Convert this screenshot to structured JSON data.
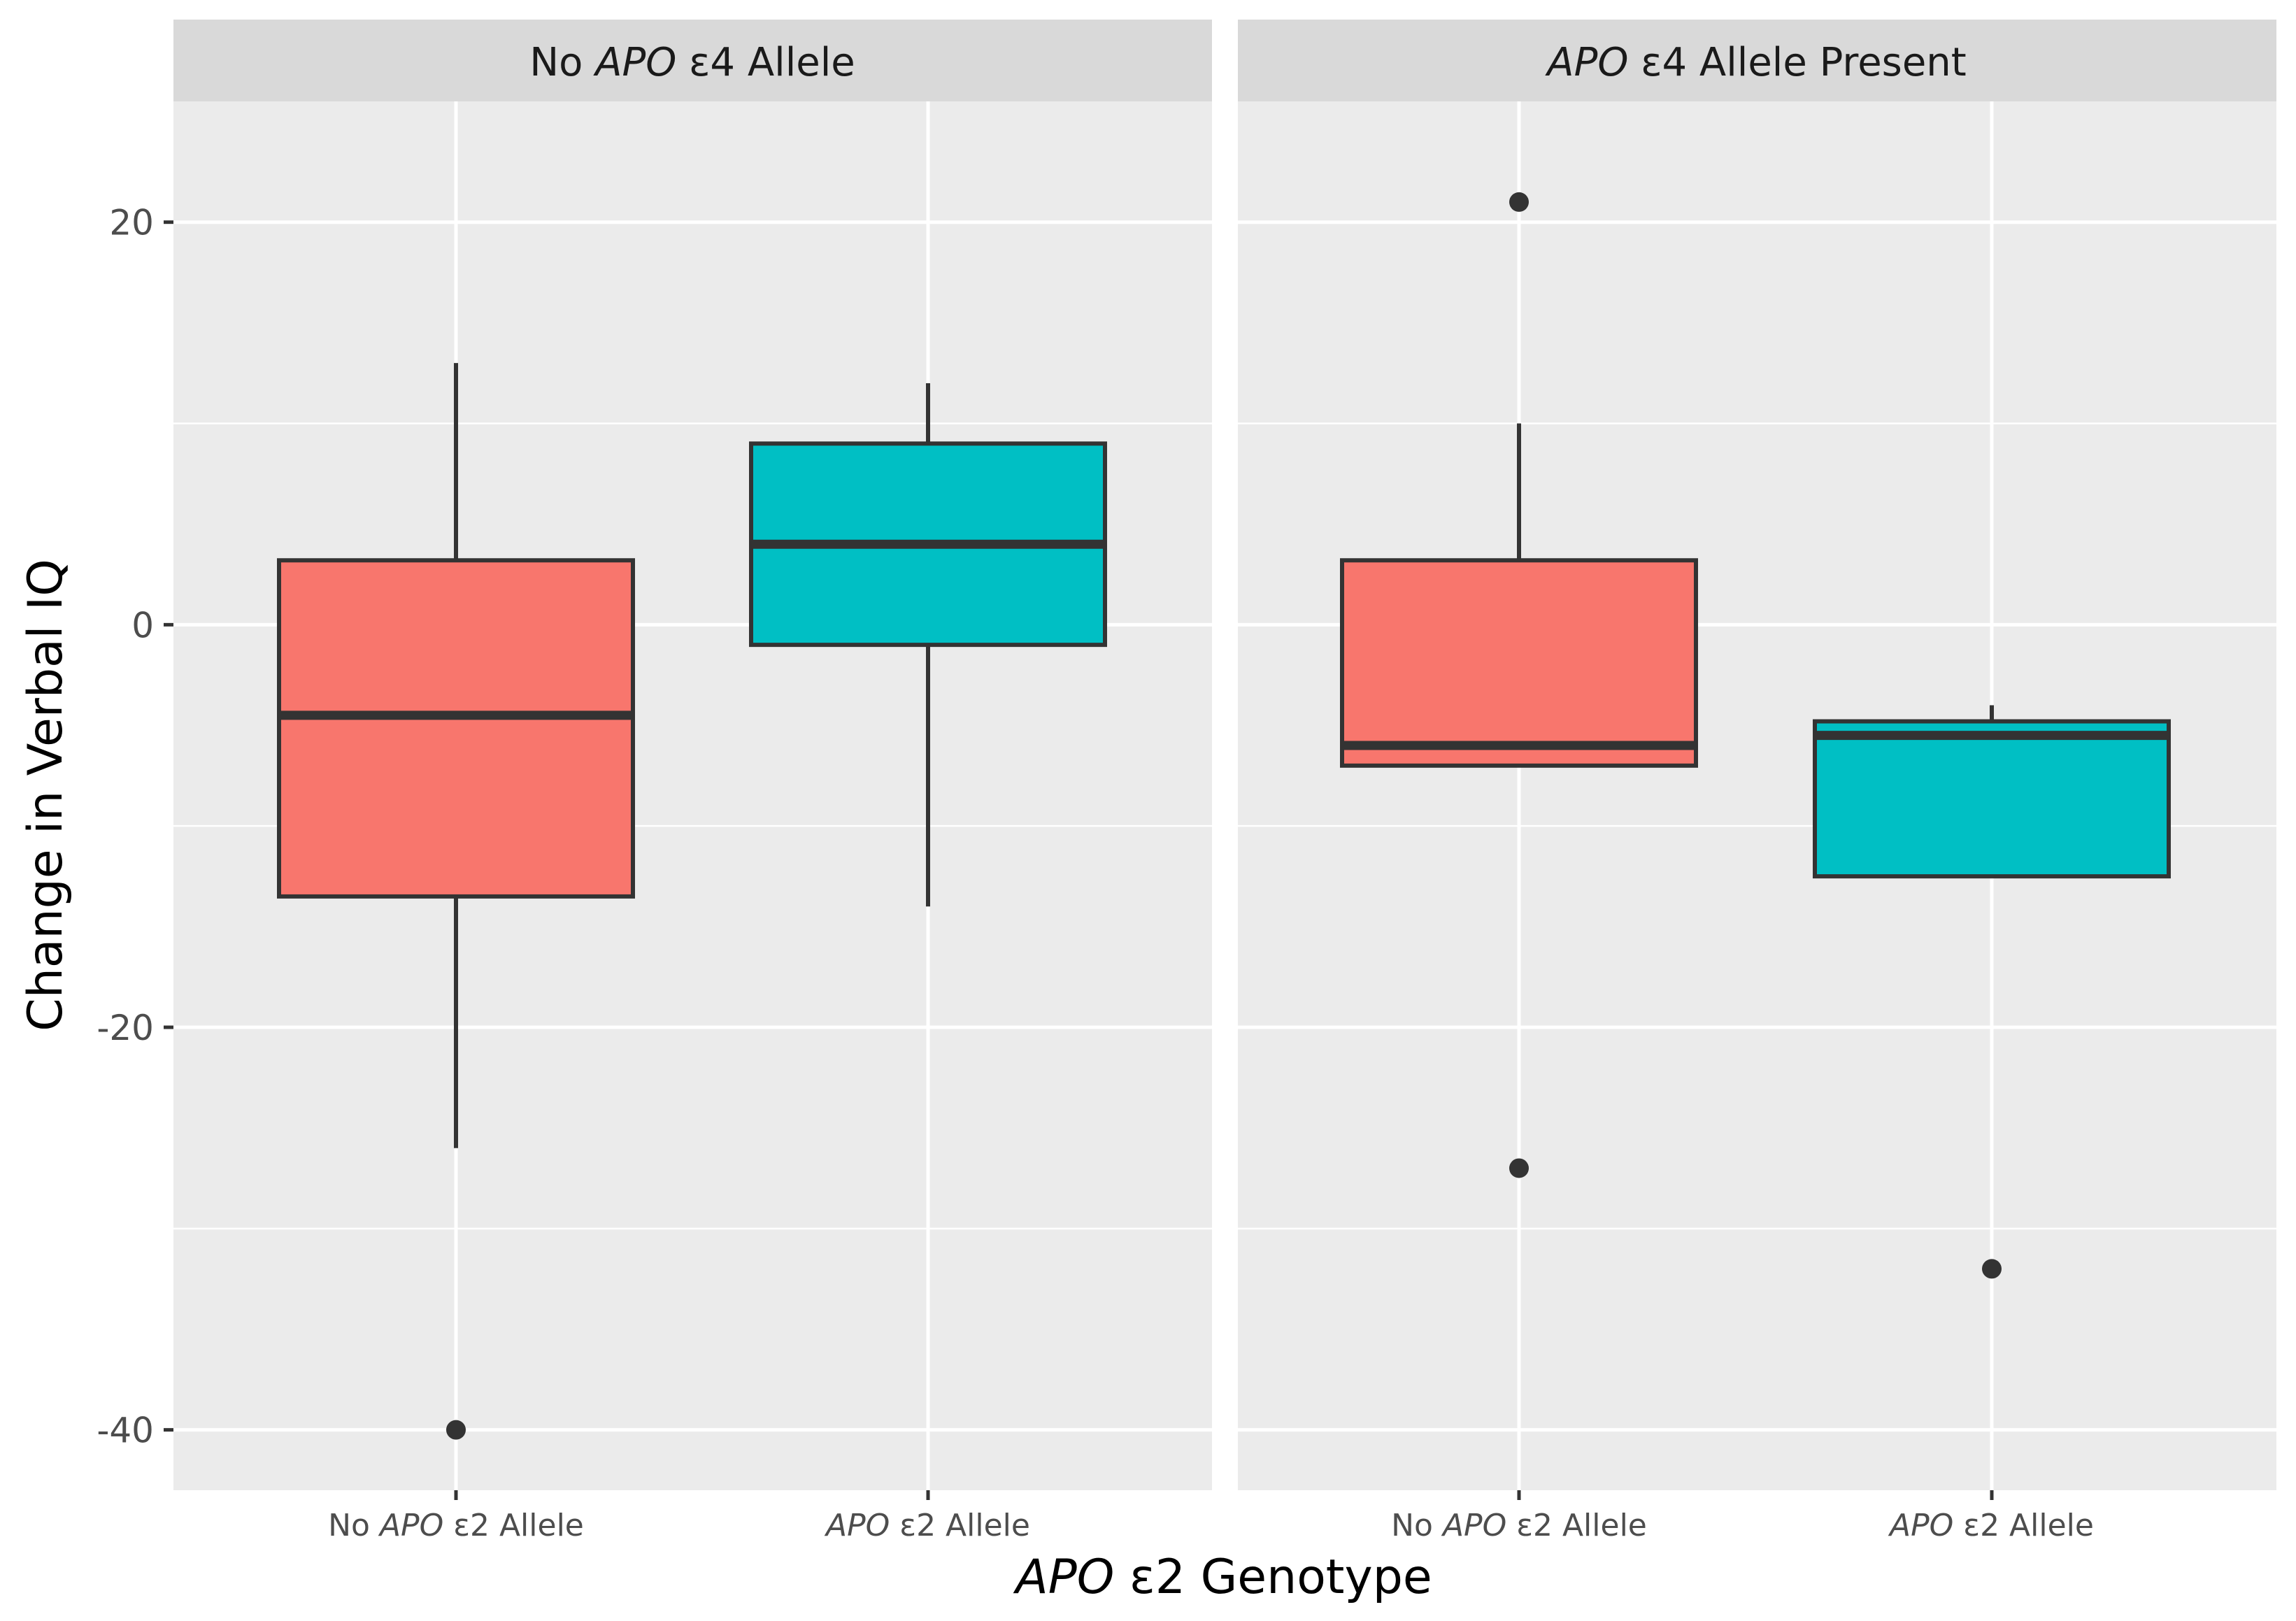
{
  "chart_data": {
    "type": "boxplot",
    "xlabel": {
      "gene": "APO",
      "rest": " ε2 Genotype"
    },
    "ylabel": "Change in Verbal IQ",
    "ylim": [
      -43,
      26
    ],
    "yticks": [
      20,
      0,
      -20,
      -40
    ],
    "y_tick_labels": [
      "20",
      "0",
      "-20",
      "-40"
    ],
    "categories": [
      {
        "prefix": "No ",
        "gene": "APO",
        "rest": " ε2 Allele"
      },
      {
        "prefix": "",
        "gene": "APO",
        "rest": " ε2 Allele"
      }
    ],
    "fill_colors": [
      "#F8766D",
      "#00BFC4"
    ],
    "facets": [
      {
        "label": {
          "prefix": "No ",
          "gene": "APO",
          "rest": " ε4 Allele"
        },
        "boxes": [
          {
            "category": "No APO ε2 Allele",
            "lower_whisker": -26,
            "q1": -13.5,
            "median": -4.5,
            "q3": 3.2,
            "upper_whisker": 13,
            "outliers": [
              -40
            ]
          },
          {
            "category": "APO ε2 Allele",
            "lower_whisker": -14,
            "q1": -1,
            "median": 4,
            "q3": 9,
            "upper_whisker": 12,
            "outliers": []
          }
        ]
      },
      {
        "label": {
          "prefix": "",
          "gene": "APO",
          "rest": " ε4 Allele Present"
        },
        "boxes": [
          {
            "category": "No APO ε2 Allele",
            "lower_whisker": -7,
            "q1": -7,
            "median": -6,
            "q3": 3.2,
            "upper_whisker": 10,
            "outliers": [
              21,
              -27
            ]
          },
          {
            "category": "APO ε2 Allele",
            "lower_whisker": -12.5,
            "q1": -12.5,
            "median": -5.5,
            "q3": -4.8,
            "upper_whisker": -4,
            "outliers": [
              -32
            ]
          }
        ]
      }
    ]
  }
}
